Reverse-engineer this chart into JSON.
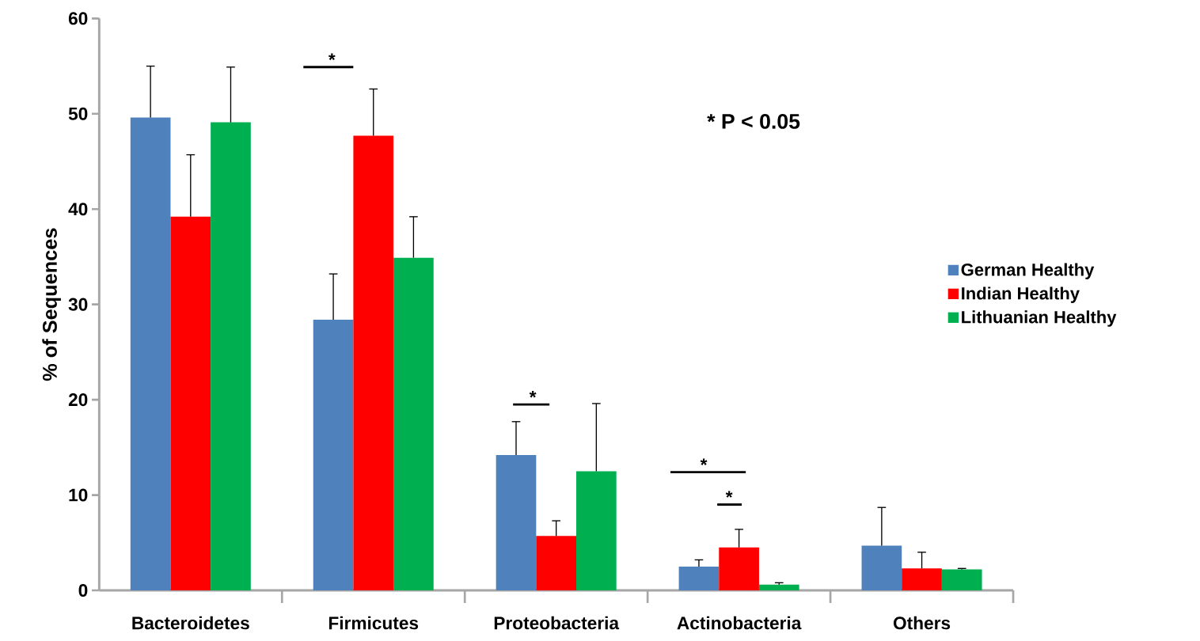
{
  "chart_data": {
    "type": "bar",
    "ylabel": "% of Sequences",
    "categories": [
      "Bacteroidetes",
      "Firmicutes",
      "Proteobacteria",
      "Actinobacteria",
      "Others"
    ],
    "series": [
      {
        "name": "German Healthy",
        "color": "#4f81bd",
        "values": [
          49.6,
          28.4,
          14.2,
          2.5,
          4.7
        ],
        "errors": [
          [
            49.6,
            55.0
          ],
          [
            28.4,
            33.2
          ],
          [
            14.2,
            17.7
          ],
          [
            2.5,
            3.2
          ],
          [
            4.7,
            8.7
          ]
        ]
      },
      {
        "name": "Indian Healthy",
        "color": "#ff0000",
        "values": [
          39.2,
          47.7,
          5.7,
          4.5,
          2.3
        ],
        "errors": [
          [
            39.2,
            45.7
          ],
          [
            47.7,
            52.6
          ],
          [
            5.7,
            7.3
          ],
          [
            4.5,
            6.4
          ],
          [
            2.3,
            4.0
          ]
        ]
      },
      {
        "name": "Lithuanian Healthy",
        "color": "#00b050",
        "values": [
          49.1,
          34.9,
          12.5,
          0.6,
          2.2
        ],
        "errors": [
          [
            49.1,
            54.9
          ],
          [
            34.9,
            39.2
          ],
          [
            12.5,
            19.6
          ],
          [
            0.6,
            0.8
          ],
          [
            2.2,
            2.3
          ]
        ]
      }
    ],
    "ylim": [
      0,
      60
    ],
    "yticks": [
      0,
      10,
      20,
      30,
      40,
      50,
      60
    ],
    "grid": false,
    "legend": "right",
    "annotations": [
      "*",
      "*",
      "*",
      "*",
      "* P < 0.05"
    ]
  }
}
